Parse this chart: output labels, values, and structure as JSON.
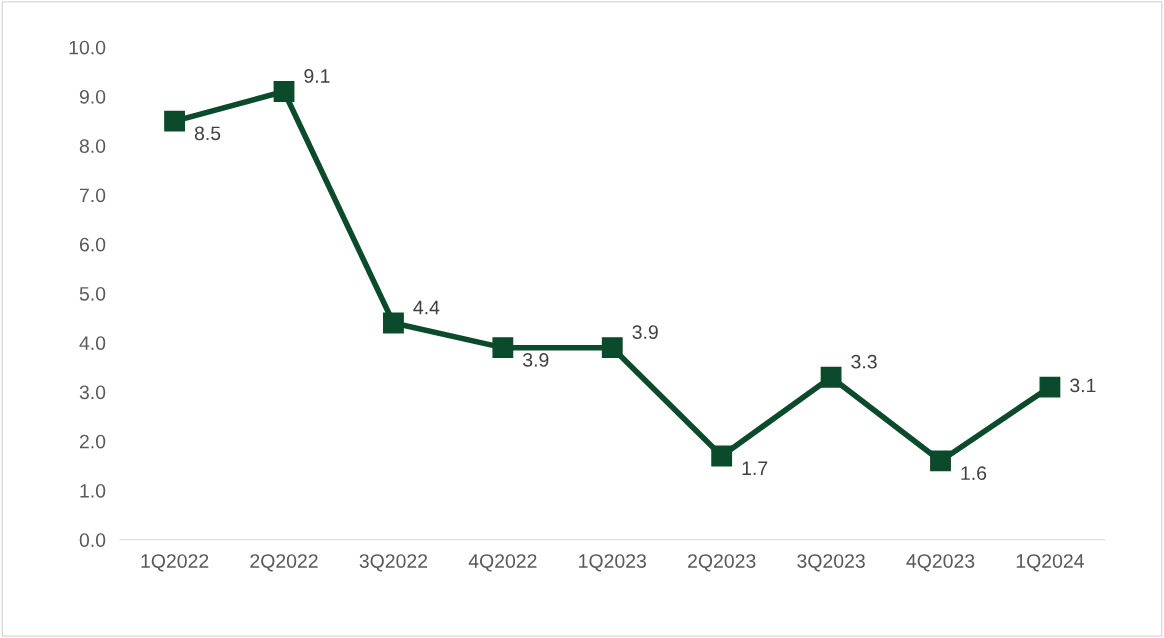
{
  "chart_data": {
    "type": "line",
    "categories": [
      "1Q2022",
      "2Q2022",
      "3Q2022",
      "4Q2022",
      "1Q2023",
      "2Q2023",
      "3Q2023",
      "4Q2023",
      "1Q2024"
    ],
    "series": [
      {
        "color": "#0b4a2a",
        "values": [
          8.5,
          9.1,
          4.4,
          3.9,
          3.9,
          1.7,
          3.3,
          1.6,
          3.1
        ]
      }
    ],
    "ylim": [
      0,
      10
    ],
    "yticks": [
      {
        "value": 0,
        "label": "0.0"
      },
      {
        "value": 1,
        "label": "1.0"
      },
      {
        "value": 2,
        "label": "2.0"
      },
      {
        "value": 3,
        "label": "3.0"
      },
      {
        "value": 4,
        "label": "4.0"
      },
      {
        "value": 5,
        "label": "5.0"
      },
      {
        "value": 6,
        "label": "6.0"
      },
      {
        "value": 7,
        "label": "7.0"
      },
      {
        "value": 8,
        "label": "8.0"
      },
      {
        "value": 9,
        "label": "9.0"
      },
      {
        "value": 10,
        "label": "10.0"
      }
    ],
    "grid": false,
    "legend": false,
    "marker": "square",
    "line_style": "solid",
    "data_labels": true
  }
}
